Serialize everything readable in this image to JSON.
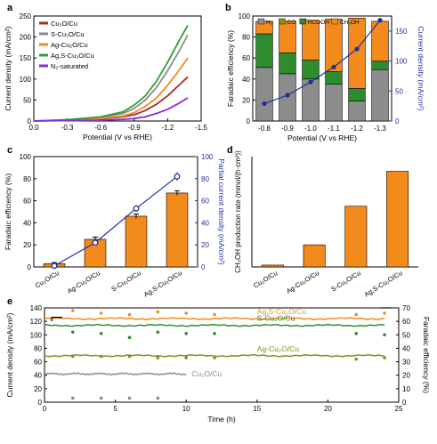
{
  "chart_data": [
    {
      "panel": "a",
      "type": "line",
      "xlabel": "Potential (V vs RHE)",
      "ylabel": "Current density (mA/cm²)",
      "xlim": [
        0.0,
        -1.5
      ],
      "ylim": [
        0,
        250
      ],
      "xticks": [
        "0.0",
        "-0.3",
        "-0.6",
        "-0.9",
        "-1.2",
        "-1.5"
      ],
      "yticks": [
        "0",
        "50",
        "100",
        "150",
        "200",
        "250"
      ],
      "legend_position": "top-left",
      "series": [
        {
          "name": "Cu₂O/Cu",
          "color": "#a52a2a",
          "x": [
            0,
            -0.3,
            -0.6,
            -0.8,
            -0.9,
            -1.0,
            -1.1,
            -1.2,
            -1.3,
            -1.38
          ],
          "y": [
            0,
            2,
            5,
            10,
            15,
            25,
            40,
            60,
            85,
            105
          ]
        },
        {
          "name": "S-Cu₂O/Cu",
          "color": "#8c8c8c",
          "x": [
            0,
            -0.3,
            -0.6,
            -0.8,
            -0.9,
            -1.0,
            -1.1,
            -1.2,
            -1.3,
            -1.38
          ],
          "y": [
            0,
            3,
            8,
            18,
            30,
            50,
            80,
            120,
            165,
            205
          ]
        },
        {
          "name": "Ag-Cu₂O/Cu",
          "color": "#f28a1c",
          "x": [
            0,
            -0.3,
            -0.6,
            -0.8,
            -0.9,
            -1.0,
            -1.1,
            -1.2,
            -1.3,
            -1.38
          ],
          "y": [
            0,
            2,
            6,
            12,
            20,
            35,
            55,
            85,
            120,
            150
          ]
        },
        {
          "name": "Ag,S-Cu₂O/Cu",
          "color": "#2ca02c",
          "x": [
            0,
            -0.3,
            -0.6,
            -0.8,
            -0.9,
            -1.0,
            -1.1,
            -1.2,
            -1.3,
            -1.38
          ],
          "y": [
            0,
            3,
            10,
            22,
            38,
            60,
            95,
            140,
            190,
            228
          ]
        },
        {
          "name": "N₂-saturated",
          "color": "#8a2be2",
          "x": [
            0,
            -0.3,
            -0.6,
            -0.8,
            -0.9,
            -1.0,
            -1.1,
            -1.2,
            -1.3,
            -1.38
          ],
          "y": [
            0,
            1,
            2,
            4,
            6,
            10,
            18,
            28,
            42,
            55
          ]
        }
      ]
    },
    {
      "panel": "b",
      "type": "bar",
      "xlabel": "Potential (V vs RHE)",
      "ylabel": "Faradaic efficiency (%)",
      "ylabel_right": "Current density (mA/cm²)",
      "categories": [
        "-0.8",
        "-0.9",
        "-1.0",
        "-1.1",
        "-1.2",
        "-1.3"
      ],
      "ylim": [
        0,
        100
      ],
      "ylim_right": [
        0,
        175
      ],
      "yticks": [
        "0",
        "20",
        "40",
        "60",
        "80",
        "100"
      ],
      "yticks_right": [
        "0",
        "50",
        "100",
        "150"
      ],
      "legend_position": "top",
      "series": [
        {
          "name": "H₂",
          "color": "#8c8c8c",
          "values": [
            51,
            45,
            40,
            35,
            19,
            49
          ]
        },
        {
          "name": "CO",
          "color": "#8f8a1a",
          "values": [
            0,
            0,
            0,
            0,
            0,
            0
          ]
        },
        {
          "name": "HCOOH",
          "color": "#2e8b2e",
          "values": [
            32,
            20,
            18,
            12,
            12,
            8
          ]
        },
        {
          "name": "CH₃OH",
          "color": "#f28a1c",
          "values": [
            12,
            30,
            38,
            50,
            67,
            38
          ]
        }
      ],
      "line": {
        "color": "#1f2f9a",
        "values": [
          29,
          43,
          65,
          90,
          120,
          168
        ]
      }
    },
    {
      "panel": "c",
      "type": "bar",
      "ylabel": "Faradaic efficiency (%)",
      "ylabel_right": "Partial current density (mA/cm²)",
      "categories": [
        "Cu₂O/Cu",
        "Ag-Cu₂O/Cu",
        "S-Cu₂O/Cu",
        "Ag,S-Cu₂O/Cu"
      ],
      "ylim": [
        0,
        100
      ],
      "ylim_right": [
        0,
        100
      ],
      "yticks": [
        "0",
        "20",
        "40",
        "60",
        "80",
        "100"
      ],
      "yticks_right": [
        "0",
        "20",
        "40",
        "60",
        "80",
        "100"
      ],
      "bar_color": "#f28a1c",
      "values": [
        3,
        25,
        46,
        67
      ],
      "errors": [
        1,
        2,
        2,
        2
      ],
      "line": {
        "color": "#1f2f9a",
        "values": [
          1,
          22,
          53,
          82
        ],
        "errors": [
          1,
          2,
          3,
          4
        ]
      }
    },
    {
      "panel": "d",
      "type": "bar",
      "ylabel": "CH₃OH production rate (mmol/(h·cm²))",
      "categories": [
        "Cu₂O/Cu",
        "Ag-Cu₂O/Cu",
        "S-Cu₂O/Cu",
        "Ag,S-Cu₂O/Cu"
      ],
      "bar_color": "#f28a1c",
      "values": [
        0.01,
        0.12,
        0.33,
        0.52
      ],
      "ylim": [
        0,
        0.6
      ]
    },
    {
      "panel": "e",
      "type": "line",
      "xlabel": "Time (h)",
      "ylabel": "Current density (mA/cm²)",
      "ylabel_right": "Faradaic efficiency (%)",
      "xlim": [
        0,
        25
      ],
      "ylim": [
        0,
        140
      ],
      "ylim_right": [
        0,
        70
      ],
      "xticks": [
        "0",
        "5",
        "10",
        "15",
        "20",
        "25"
      ],
      "yticks": [
        "0",
        "20",
        "40",
        "60",
        "80",
        "100",
        "120",
        "140"
      ],
      "yticks_right": [
        "0",
        "10",
        "20",
        "30",
        "40",
        "50",
        "60",
        "70"
      ],
      "series": [
        {
          "name": "Ag,S-Cu₂O/Cu",
          "color": "#f28a1c",
          "x_end": 24,
          "level": 124,
          "fe_x": [
            2,
            4,
            6,
            8,
            10,
            12,
            22,
            24
          ],
          "fe": [
            68,
            66,
            65,
            67,
            66,
            65,
            65,
            66
          ]
        },
        {
          "name": "S-Cu₂O/Cu",
          "color": "#2e8b2e",
          "x_end": 24,
          "level": 114,
          "fe_x": [
            2,
            4,
            6,
            8,
            10,
            12,
            22,
            24
          ],
          "fe": [
            52,
            51,
            48,
            52,
            51,
            51,
            51,
            50
          ]
        },
        {
          "name": "Ag-Cu₂O/Cu",
          "color": "#8f8a1a",
          "x_end": 24,
          "level": 69,
          "fe_x": [
            2,
            4,
            6,
            8,
            10,
            12,
            22,
            24
          ],
          "fe": [
            34,
            34,
            34,
            33,
            33,
            33,
            32,
            33
          ]
        },
        {
          "name": "Cu₂O/Cu",
          "color": "#8c8c8c",
          "x_end": 10,
          "level": 42,
          "fe_x": [
            2,
            4,
            6,
            8
          ],
          "fe": [
            3,
            3,
            3,
            3
          ]
        }
      ]
    }
  ],
  "panel_labels": {
    "a": "a",
    "b": "b",
    "c": "c",
    "d": "d",
    "e": "e"
  }
}
